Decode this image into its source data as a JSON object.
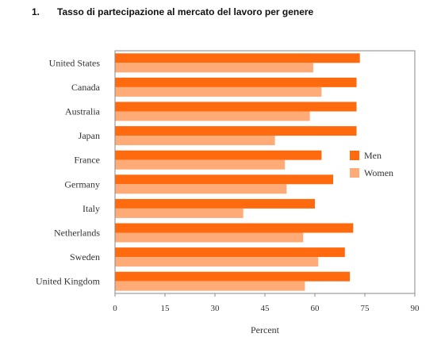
{
  "heading": {
    "number": "1.",
    "title": "Tasso di partecipazione al mercato del lavoro per genere"
  },
  "chart_data": {
    "type": "bar",
    "orientation": "horizontal",
    "categories": [
      "United States",
      "Canada",
      "Australia",
      "Japan",
      "France",
      "Germany",
      "Italy",
      "Netherlands",
      "Sweden",
      "United Kingdom"
    ],
    "series": [
      {
        "name": "Men",
        "color": "#ff6a0f",
        "values": [
          73.5,
          72.5,
          72.5,
          72.5,
          62,
          65.5,
          60,
          71.5,
          69,
          70.5
        ]
      },
      {
        "name": "Women",
        "color": "#ffab78",
        "values": [
          59.5,
          62,
          58.5,
          48,
          51,
          51.5,
          38.5,
          56.5,
          61,
          57
        ]
      }
    ],
    "xlabel": "Percent",
    "xlim": [
      0,
      90
    ],
    "xticks": [
      0,
      15,
      30,
      45,
      60,
      75,
      90
    ],
    "legend_position": "right"
  }
}
